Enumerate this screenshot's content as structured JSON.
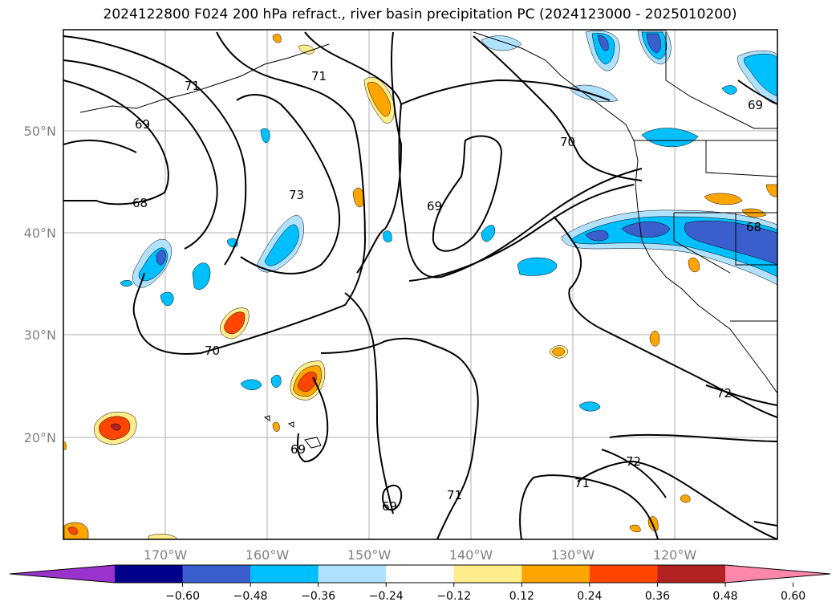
{
  "title": "2024122800 F024 200 hPa refract., river basin precipitation PC (2024123000 - 2025010200)",
  "map": {
    "lat_labels": [
      "50°N",
      "40°N",
      "30°N",
      "20°N"
    ],
    "lon_labels": [
      "170°W",
      "160°W",
      "150°W",
      "140°W",
      "130°W",
      "120°W"
    ],
    "contour_labels": [
      "71",
      "71",
      "69",
      "68",
      "73",
      "70",
      "69",
      "70",
      "69",
      "72",
      "72",
      "71",
      "71",
      "69",
      "69",
      "68"
    ]
  },
  "colorbar": {
    "colors": [
      "#9933cc",
      "#00008b",
      "#3a5fcd",
      "#00bfff",
      "#b0e2ff",
      "#ffffff",
      "#ffec8b",
      "#ffa500",
      "#ff4500",
      "#b22222",
      "#ff88aa"
    ],
    "tick_labels": [
      "−0.60",
      "−0.48",
      "−0.36",
      "−0.24",
      "−0.12",
      "0.12",
      "0.24",
      "0.36",
      "0.48",
      "0.60"
    ]
  }
}
